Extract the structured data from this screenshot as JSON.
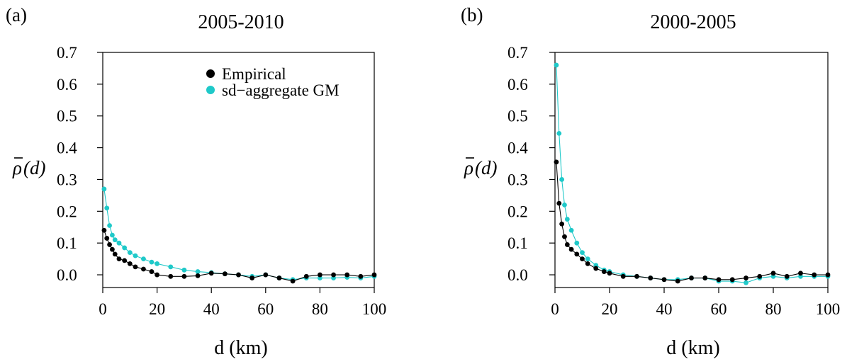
{
  "colors": {
    "empirical": "#000000",
    "model": "#1fc9c9"
  },
  "panels": [
    {
      "label": "(a)",
      "title": "2005-2010",
      "ylabel_main": "ρ",
      "ylabel_arg": "(d)"
    },
    {
      "label": "(b)",
      "title": "2000-2005",
      "ylabel_main": "ρ",
      "ylabel_arg": "(d)"
    }
  ],
  "legend": {
    "empirical": "Empirical",
    "model": "sd−aggregate GM"
  },
  "chart_data": [
    {
      "type": "scatter",
      "title": "2005-2010",
      "xlabel": "d (km)",
      "ylabel": "ρ(d)",
      "xlim": [
        0,
        100
      ],
      "ylim": [
        -0.04,
        0.7
      ],
      "xticks": [
        0,
        20,
        40,
        60,
        80,
        100
      ],
      "yticks": [
        0.0,
        0.1,
        0.2,
        0.3,
        0.4,
        0.5,
        0.6,
        0.7
      ],
      "ytick_labels": [
        "0.0",
        "0.1",
        "0.2",
        "0.3",
        "0.4",
        "0.5",
        "0.6",
        "0.7"
      ],
      "legend_position": "top-right",
      "series": [
        {
          "name": "Empirical",
          "x": [
            0.5,
            1.5,
            2.5,
            3.5,
            4.5,
            6,
            8,
            10,
            12,
            15,
            18,
            20,
            25,
            30,
            35,
            40,
            45,
            50,
            55,
            60,
            65,
            70,
            75,
            80,
            85,
            90,
            95,
            100
          ],
          "y": [
            0.14,
            0.115,
            0.095,
            0.08,
            0.065,
            0.05,
            0.045,
            0.035,
            0.025,
            0.018,
            0.01,
            0.0,
            -0.005,
            -0.005,
            -0.003,
            0.005,
            0.003,
            0.0,
            -0.01,
            0.0,
            -0.01,
            -0.02,
            -0.005,
            0.0,
            0.0,
            0.0,
            -0.005,
            0.0
          ]
        },
        {
          "name": "sd−aggregate GM",
          "x": [
            0.5,
            1.5,
            2.5,
            3.5,
            4.5,
            6,
            8,
            10,
            12,
            15,
            18,
            20,
            25,
            30,
            35,
            40,
            45,
            50,
            55,
            60,
            65,
            70,
            75,
            80,
            85,
            90,
            95,
            100
          ],
          "y": [
            0.27,
            0.21,
            0.155,
            0.125,
            0.11,
            0.1,
            0.085,
            0.07,
            0.06,
            0.05,
            0.04,
            0.035,
            0.025,
            0.015,
            0.01,
            0.007,
            0.003,
            0.0,
            -0.005,
            0.0,
            -0.01,
            -0.015,
            -0.01,
            -0.01,
            -0.01,
            -0.008,
            -0.01,
            -0.005
          ]
        }
      ]
    },
    {
      "type": "scatter",
      "title": "2000-2005",
      "xlabel": "d (km)",
      "ylabel": "ρ(d)",
      "xlim": [
        0,
        100
      ],
      "ylim": [
        -0.04,
        0.7
      ],
      "xticks": [
        0,
        20,
        40,
        60,
        80,
        100
      ],
      "yticks": [
        0.0,
        0.1,
        0.2,
        0.3,
        0.4,
        0.5,
        0.6,
        0.7
      ],
      "ytick_labels": [
        "0.0",
        "0.1",
        "0.2",
        "0.3",
        "0.4",
        "0.5",
        "0.6",
        "0.7"
      ],
      "series": [
        {
          "name": "Empirical",
          "x": [
            0.5,
            1.5,
            2.5,
            3.5,
            4.5,
            6,
            8,
            10,
            12,
            15,
            18,
            20,
            25,
            30,
            35,
            40,
            45,
            50,
            55,
            60,
            65,
            70,
            75,
            80,
            85,
            90,
            95,
            100
          ],
          "y": [
            0.355,
            0.225,
            0.16,
            0.12,
            0.095,
            0.08,
            0.065,
            0.05,
            0.035,
            0.02,
            0.01,
            0.005,
            -0.005,
            -0.005,
            -0.01,
            -0.015,
            -0.02,
            -0.01,
            -0.01,
            -0.015,
            -0.015,
            -0.01,
            -0.005,
            0.005,
            -0.005,
            0.005,
            0.0,
            0.0
          ]
        },
        {
          "name": "sd−aggregate GM",
          "x": [
            0.5,
            1.5,
            2.5,
            3.5,
            4.5,
            6,
            8,
            10,
            12,
            15,
            18,
            20,
            25,
            30,
            35,
            40,
            45,
            50,
            55,
            60,
            65,
            70,
            75,
            80,
            85,
            90,
            95,
            100
          ],
          "y": [
            0.66,
            0.445,
            0.3,
            0.22,
            0.175,
            0.14,
            0.1,
            0.07,
            0.05,
            0.03,
            0.015,
            0.01,
            0.0,
            -0.005,
            -0.01,
            -0.015,
            -0.015,
            -0.01,
            -0.01,
            -0.02,
            -0.02,
            -0.025,
            -0.01,
            -0.005,
            -0.01,
            -0.005,
            -0.005,
            -0.005
          ]
        }
      ]
    }
  ]
}
